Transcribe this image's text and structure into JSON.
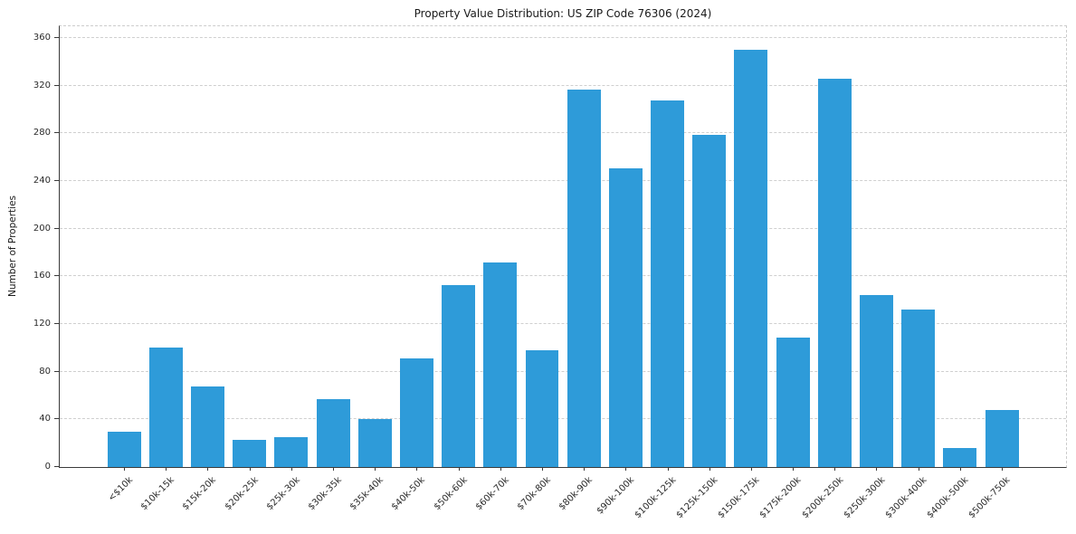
{
  "chart_data": {
    "type": "bar",
    "title": "Property Value Distribution: US ZIP Code 76306 (2024)",
    "xlabel": "",
    "ylabel": "Number of Properties",
    "categories": [
      "<$10k",
      "$10k-15k",
      "$15k-20k",
      "$20k-25k",
      "$25k-30k",
      "$30k-35k",
      "$35k-40k",
      "$40k-50k",
      "$50k-60k",
      "$60k-70k",
      "$70k-80k",
      "$80k-90k",
      "$90k-100k",
      "$100k-125k",
      "$125k-150k",
      "$150k-175k",
      "$175k-200k",
      "$200k-250k",
      "$250k-300k",
      "$300k-400k",
      "$400k-500k",
      "$500k-750k"
    ],
    "values": [
      30,
      100,
      68,
      23,
      25,
      57,
      40,
      91,
      153,
      172,
      98,
      317,
      251,
      308,
      279,
      350,
      109,
      326,
      144,
      132,
      16,
      48
    ],
    "yticks": [
      0,
      40,
      80,
      120,
      160,
      200,
      240,
      280,
      320,
      360
    ],
    "ylim": [
      0,
      370
    ],
    "bar_color": "#2e9bd9",
    "grid": "horizontal-dashed",
    "legend": "none",
    "background_color": "#ffffff"
  }
}
